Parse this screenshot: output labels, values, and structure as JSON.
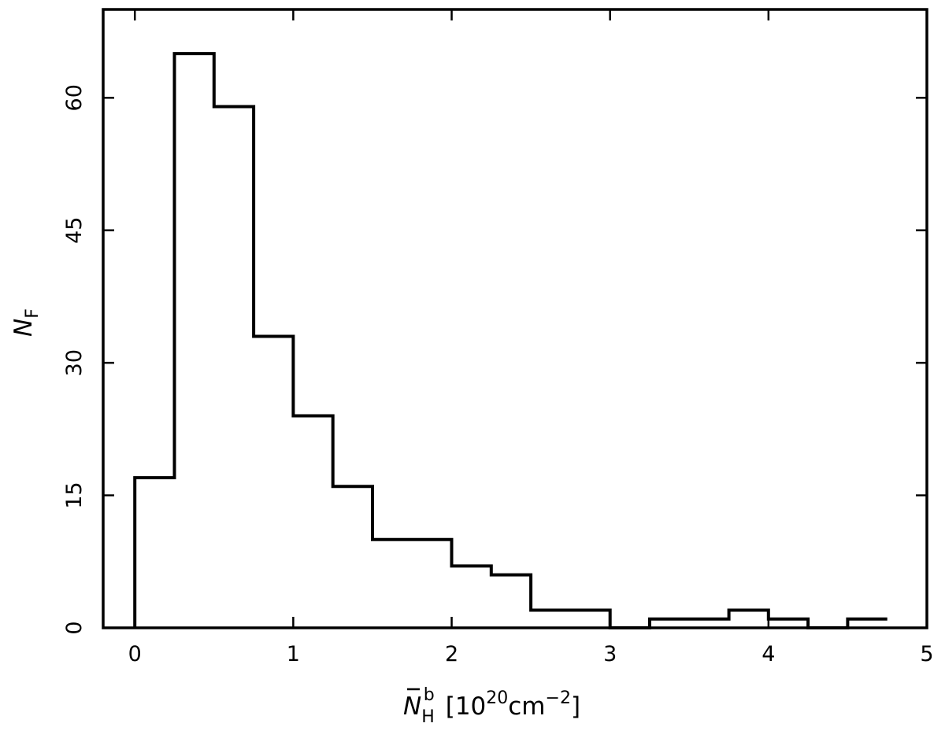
{
  "chart_data": {
    "type": "histogram",
    "title": "",
    "bin_width": 0.25,
    "bin_edges": [
      0,
      0.25,
      0.5,
      0.75,
      1.0,
      1.25,
      1.5,
      1.75,
      2.0,
      2.25,
      2.5,
      2.75,
      3.0,
      3.25,
      3.5,
      3.75,
      4.0,
      4.25,
      4.5,
      4.75
    ],
    "values": [
      17,
      65,
      59,
      33,
      24,
      16,
      10,
      10,
      7,
      6,
      2,
      2,
      0,
      1,
      1,
      2,
      1,
      0,
      1
    ],
    "xlim": [
      -0.2,
      5.0
    ],
    "ylim": [
      0,
      70
    ],
    "xticks": [
      0,
      1,
      2,
      3,
      4,
      5
    ],
    "yticks": [
      0,
      15,
      30,
      45,
      60
    ],
    "xlabel": {
      "main": "N",
      "sub": "H",
      "sup": "b",
      "unit_open": "[10",
      "unit_exp": "20",
      "unit_mid": "cm",
      "unit_exp2": "−2",
      "unit_close": "]"
    },
    "ylabel": {
      "main": "N",
      "sub": "F"
    },
    "grid": false,
    "legend": "none",
    "line_color": "#000000"
  }
}
